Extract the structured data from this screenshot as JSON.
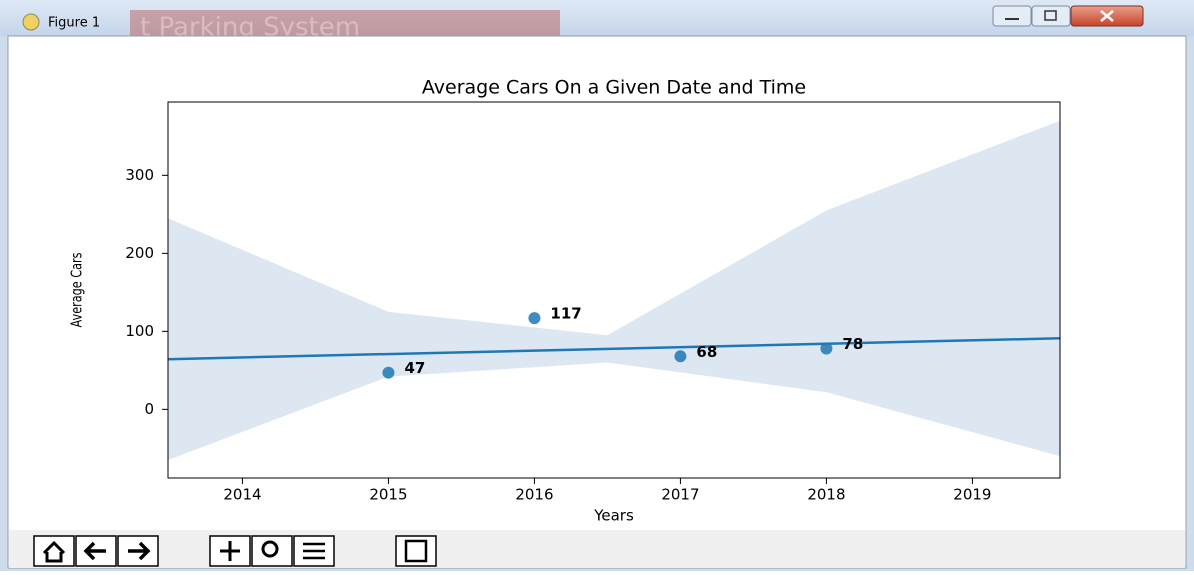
{
  "window": {
    "title": "Figure 1",
    "background_text": "t Parking System"
  },
  "chart_data": {
    "type": "scatter",
    "title": "Average Cars On a Given Date and Time",
    "x_label": "Years",
    "y_label": "Average Cars",
    "x": [
      2015,
      2016,
      2017,
      2018
    ],
    "values": [
      47,
      117,
      68,
      78
    ],
    "color": "#1f77b4",
    "fit_line": {
      "x": [
        2013.49,
        2019.6
      ],
      "values": [
        64.3,
        91.1
      ],
      "color": "#1f77b4"
    },
    "band": {
      "x": [
        2013.49,
        2015,
        2016.5,
        2018,
        2019.6
      ],
      "upper": [
        245,
        125,
        95,
        255,
        370
      ],
      "lower": [
        -65,
        42,
        60,
        22,
        -60
      ],
      "color": "#dce7f2"
    },
    "xlim": [
      2013.49,
      2019.6
    ],
    "ylim": [
      -88,
      394
    ],
    "xticks": [
      2014,
      2015,
      2016,
      2017,
      2018,
      2019
    ],
    "yticks": [
      0,
      100,
      200,
      300
    ]
  }
}
